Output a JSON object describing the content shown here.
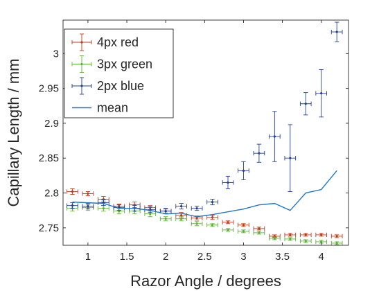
{
  "chart_data": {
    "type": "scatter",
    "title": "",
    "xlabel": "Razor Angle / degrees",
    "ylabel": "Capillary Length / mm",
    "xlim": [
      0.68,
      4.35
    ],
    "ylim": [
      2.725,
      3.048
    ],
    "xticks": [
      1,
      1.5,
      2,
      2.5,
      3,
      3.5,
      4
    ],
    "xtick_labels": [
      "1",
      "1.5",
      "2",
      "2.5",
      "3",
      "3.5",
      "4"
    ],
    "yticks": [
      2.75,
      2.8,
      2.85,
      2.9,
      2.95,
      3.0
    ],
    "ytick_labels": [
      "2.75",
      "2.8",
      "2.85",
      "2.9",
      "2.95",
      "3"
    ],
    "grid": false,
    "legend_position": "top-left",
    "x_error": 0.07,
    "series": [
      {
        "name": "4px red",
        "color": "#c0391b",
        "marker": "dot",
        "x": [
          0.8,
          1.0,
          1.2,
          1.4,
          1.6,
          1.8,
          2.0,
          2.2,
          2.4,
          2.6,
          2.8,
          3.0,
          3.2,
          3.4,
          3.6,
          3.8,
          4.0,
          4.2
        ],
        "y": [
          2.802,
          2.799,
          2.791,
          2.781,
          2.783,
          2.779,
          2.774,
          2.768,
          2.764,
          2.765,
          2.758,
          2.754,
          2.749,
          2.738,
          2.74,
          2.74,
          2.74,
          2.738
        ],
        "y_err": [
          0.004,
          0.003,
          0.004,
          0.003,
          0.004,
          0.003,
          0.003,
          0.004,
          0.003,
          0.003,
          0.002,
          0.002,
          0.002,
          0.002,
          0.002,
          0.002,
          0.002,
          0.002
        ]
      },
      {
        "name": "3px green",
        "color": "#5bb131",
        "marker": "dot",
        "x": [
          0.8,
          1.0,
          1.2,
          1.4,
          1.6,
          1.8,
          2.0,
          2.2,
          2.4,
          2.6,
          2.8,
          3.0,
          3.2,
          3.4,
          3.6,
          3.8,
          4.0,
          4.2
        ],
        "y": [
          2.778,
          2.779,
          2.778,
          2.774,
          2.774,
          2.77,
          2.763,
          2.763,
          2.756,
          2.754,
          2.747,
          2.745,
          2.743,
          2.735,
          2.734,
          2.731,
          2.73,
          2.728
        ],
        "y_err": [
          0.004,
          0.004,
          0.004,
          0.004,
          0.004,
          0.004,
          0.003,
          0.003,
          0.003,
          0.002,
          0.002,
          0.002,
          0.002,
          0.002,
          0.002,
          0.002,
          0.002,
          0.002
        ]
      },
      {
        "name": "2px blue",
        "color": "#1f3f96",
        "marker": "dot",
        "x": [
          0.8,
          1.0,
          1.2,
          1.4,
          1.6,
          1.8,
          2.0,
          2.2,
          2.4,
          2.6,
          2.8,
          3.0,
          3.2,
          3.4,
          3.6,
          3.8,
          4.0,
          4.2
        ],
        "y": [
          2.782,
          2.781,
          2.786,
          2.779,
          2.778,
          2.776,
          2.774,
          2.781,
          2.778,
          2.787,
          2.815,
          2.832,
          2.857,
          2.881,
          2.85,
          2.928,
          2.943,
          3.031
        ],
        "y_err": [
          0.004,
          0.004,
          0.004,
          0.004,
          0.004,
          0.004,
          0.004,
          0.004,
          0.003,
          0.004,
          0.009,
          0.013,
          0.013,
          0.036,
          0.048,
          0.016,
          0.034,
          0.014
        ]
      },
      {
        "name": "mean",
        "color": "#1f78c8",
        "marker": "none",
        "x": [
          0.8,
          1.0,
          1.2,
          1.4,
          1.6,
          1.8,
          2.0,
          2.2,
          2.4,
          2.6,
          2.8,
          3.0,
          3.2,
          3.4,
          3.6,
          3.8,
          4.0,
          4.2
        ],
        "y": [
          2.787,
          2.786,
          2.785,
          2.778,
          2.778,
          2.775,
          2.77,
          2.771,
          2.766,
          2.769,
          2.773,
          2.777,
          2.783,
          2.785,
          2.775,
          2.8,
          2.805,
          2.832
        ]
      }
    ]
  }
}
